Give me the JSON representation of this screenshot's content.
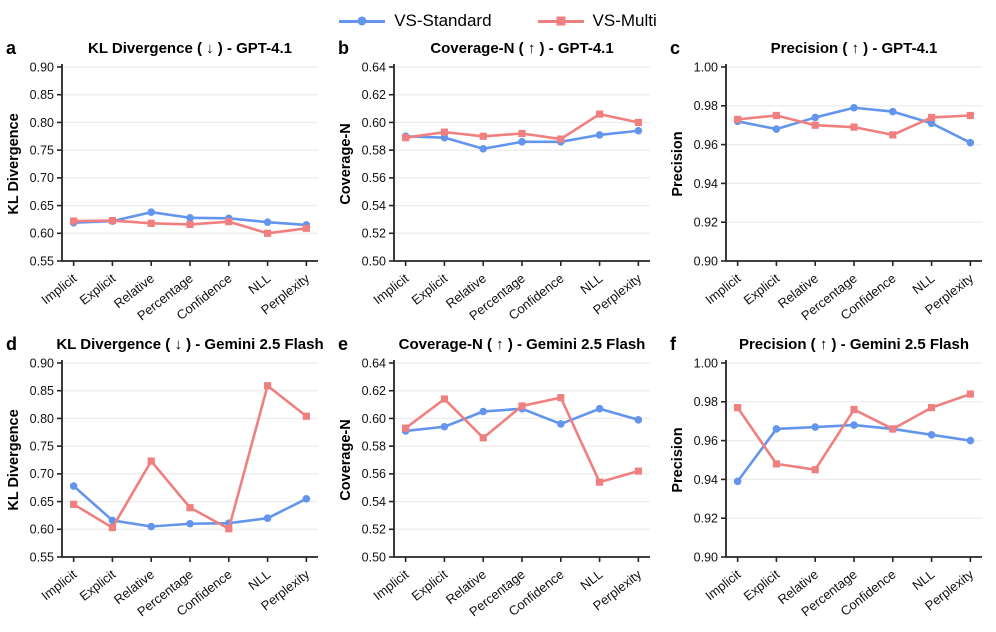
{
  "legend": {
    "position": "top-center",
    "series": [
      {
        "label": "VS-Standard",
        "color": "#6495ED",
        "marker": "circle"
      },
      {
        "label": "VS-Multi",
        "color": "#F08080",
        "marker": "square"
      }
    ]
  },
  "chart_data": [
    {
      "panel": "a",
      "type": "line",
      "title": "KL Divergence ( ↓ ) - GPT-4.1",
      "ylabel": "KL Divergence",
      "ylim": [
        0.55,
        0.9
      ],
      "ytick_step": 0.05,
      "grid": true,
      "categories": [
        "Implicit",
        "Explicit",
        "Relative",
        "Percentage",
        "Confidence",
        "NLL",
        "Perplexity"
      ],
      "series": [
        {
          "name": "VS-Standard",
          "color": "#6495ED",
          "marker": "circle",
          "values": [
            0.619,
            0.622,
            0.638,
            0.628,
            0.627,
            0.62,
            0.615
          ]
        },
        {
          "name": "VS-Multi",
          "color": "#F08080",
          "marker": "square",
          "values": [
            0.622,
            0.623,
            0.618,
            0.616,
            0.621,
            0.6,
            0.609
          ]
        }
      ]
    },
    {
      "panel": "b",
      "type": "line",
      "title": "Coverage-N ( ↑ ) - GPT-4.1",
      "ylabel": "Coverage-N",
      "ylim": [
        0.5,
        0.64
      ],
      "ytick_step": 0.02,
      "grid": true,
      "categories": [
        "Implicit",
        "Explicit",
        "Relative",
        "Percentage",
        "Confidence",
        "NLL",
        "Perplexity"
      ],
      "series": [
        {
          "name": "VS-Standard",
          "color": "#6495ED",
          "marker": "circle",
          "values": [
            0.59,
            0.589,
            0.581,
            0.586,
            0.586,
            0.591,
            0.594
          ]
        },
        {
          "name": "VS-Multi",
          "color": "#F08080",
          "marker": "square",
          "values": [
            0.589,
            0.593,
            0.59,
            0.592,
            0.588,
            0.606,
            0.6
          ]
        }
      ]
    },
    {
      "panel": "c",
      "type": "line",
      "title": "Precision ( ↑ ) - GPT-4.1",
      "ylabel": "Precision",
      "ylim": [
        0.9,
        1.0
      ],
      "ytick_step": 0.02,
      "grid": true,
      "categories": [
        "Implicit",
        "Explicit",
        "Relative",
        "Percentage",
        "Confidence",
        "NLL",
        "Perplexity"
      ],
      "series": [
        {
          "name": "VS-Standard",
          "color": "#6495ED",
          "marker": "circle",
          "values": [
            0.972,
            0.968,
            0.974,
            0.979,
            0.977,
            0.971,
            0.961
          ]
        },
        {
          "name": "VS-Multi",
          "color": "#F08080",
          "marker": "square",
          "values": [
            0.973,
            0.975,
            0.97,
            0.969,
            0.965,
            0.974,
            0.975
          ]
        }
      ]
    },
    {
      "panel": "d",
      "type": "line",
      "title": "KL Divergence ( ↓ ) - Gemini 2.5 Flash",
      "ylabel": "KL Divergence",
      "ylim": [
        0.55,
        0.9
      ],
      "ytick_step": 0.05,
      "grid": true,
      "categories": [
        "Implicit",
        "Explicit",
        "Relative",
        "Percentage",
        "Confidence",
        "NLL",
        "Perplexity"
      ],
      "series": [
        {
          "name": "VS-Standard",
          "color": "#6495ED",
          "marker": "circle",
          "values": [
            0.678,
            0.616,
            0.605,
            0.61,
            0.611,
            0.62,
            0.655
          ]
        },
        {
          "name": "VS-Multi",
          "color": "#F08080",
          "marker": "square",
          "values": [
            0.645,
            0.603,
            0.723,
            0.639,
            0.601,
            0.859,
            0.804
          ]
        }
      ]
    },
    {
      "panel": "e",
      "type": "line",
      "title": "Coverage-N ( ↑ ) - Gemini 2.5 Flash",
      "ylabel": "Coverage-N",
      "ylim": [
        0.5,
        0.64
      ],
      "ytick_step": 0.02,
      "grid": true,
      "categories": [
        "Implicit",
        "Explicit",
        "Relative",
        "Percentage",
        "Confidence",
        "NLL",
        "Perplexity"
      ],
      "series": [
        {
          "name": "VS-Standard",
          "color": "#6495ED",
          "marker": "circle",
          "values": [
            0.591,
            0.594,
            0.605,
            0.607,
            0.596,
            0.607,
            0.599
          ]
        },
        {
          "name": "VS-Multi",
          "color": "#F08080",
          "marker": "square",
          "values": [
            0.593,
            0.614,
            0.586,
            0.609,
            0.615,
            0.554,
            0.562
          ]
        }
      ]
    },
    {
      "panel": "f",
      "type": "line",
      "title": "Precision ( ↑ ) - Gemini 2.5 Flash",
      "ylabel": "Precision",
      "ylim": [
        0.9,
        1.0
      ],
      "ytick_step": 0.02,
      "grid": true,
      "categories": [
        "Implicit",
        "Explicit",
        "Relative",
        "Percentage",
        "Confidence",
        "NLL",
        "Perplexity"
      ],
      "series": [
        {
          "name": "VS-Standard",
          "color": "#6495ED",
          "marker": "circle",
          "values": [
            0.939,
            0.966,
            0.967,
            0.968,
            0.966,
            0.963,
            0.96
          ]
        },
        {
          "name": "VS-Multi",
          "color": "#F08080",
          "marker": "square",
          "values": [
            0.977,
            0.948,
            0.945,
            0.976,
            0.966,
            0.977,
            0.984
          ]
        }
      ]
    }
  ]
}
